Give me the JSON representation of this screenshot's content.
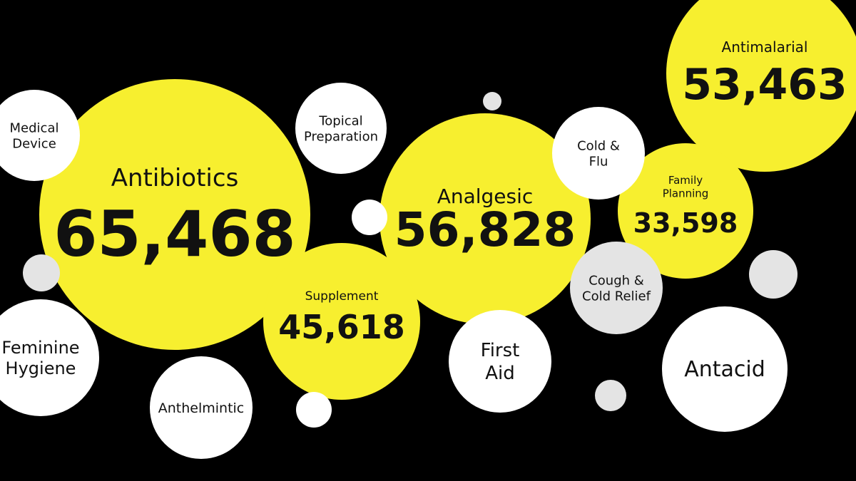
{
  "colors": {
    "background": "#000000",
    "highlight": "#f7ef2f",
    "white": "#ffffff",
    "grey": "#e4e4e4",
    "text": "#111111"
  },
  "chart_data": {
    "type": "bubble",
    "title": "",
    "value_format": "thousands-comma",
    "bubbles": [
      {
        "label": "Antibiotics",
        "value": 65468,
        "color": "highlight"
      },
      {
        "label": "Analgesic",
        "value": 56828,
        "color": "highlight"
      },
      {
        "label": "Antimalarial",
        "value": 53463,
        "color": "highlight"
      },
      {
        "label": "Supplement",
        "value": 45618,
        "color": "highlight"
      },
      {
        "label": "Family Planning",
        "value": 33598,
        "color": "highlight"
      },
      {
        "label": "Medical Device",
        "value": null,
        "color": "white"
      },
      {
        "label": "Topical Preparation",
        "value": null,
        "color": "white"
      },
      {
        "label": "Cold & Flu",
        "value": null,
        "color": "white"
      },
      {
        "label": "Cough & Cold Relief",
        "value": null,
        "color": "grey"
      },
      {
        "label": "First Aid",
        "value": null,
        "color": "white"
      },
      {
        "label": "Antacid",
        "value": null,
        "color": "white"
      },
      {
        "label": "Feminine Hygiene",
        "value": null,
        "color": "white"
      },
      {
        "label": "Anthelmintic",
        "value": null,
        "color": "white"
      },
      {
        "label": "",
        "value": null,
        "color": "grey"
      },
      {
        "label": "",
        "value": null,
        "color": "white"
      },
      {
        "label": "",
        "value": null,
        "color": "grey"
      },
      {
        "label": "",
        "value": null,
        "color": "white"
      },
      {
        "label": "",
        "value": null,
        "color": "grey"
      },
      {
        "label": "",
        "value": null,
        "color": "grey"
      }
    ]
  }
}
